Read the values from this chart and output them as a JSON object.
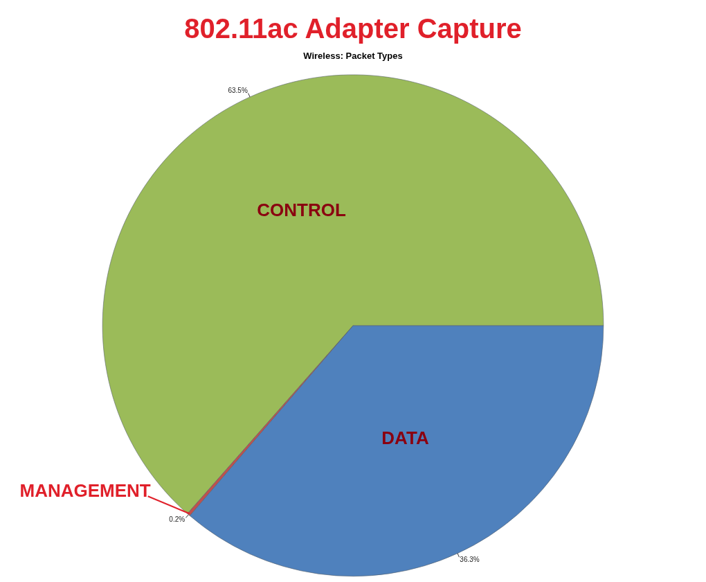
{
  "chart_data": {
    "type": "pie",
    "title": "802.11ac Adapter Capture",
    "subtitle": "Wireless: Packet Types",
    "categories": [
      "DATA",
      "MANAGEMENT",
      "CONTROL"
    ],
    "values": [
      36.3,
      0.2,
      63.5
    ],
    "colors": [
      "#4f81bd",
      "#c0504d",
      "#9bbb59"
    ],
    "value_labels": [
      "36.3%",
      "0.2%",
      "63.5%"
    ],
    "legend": false
  }
}
